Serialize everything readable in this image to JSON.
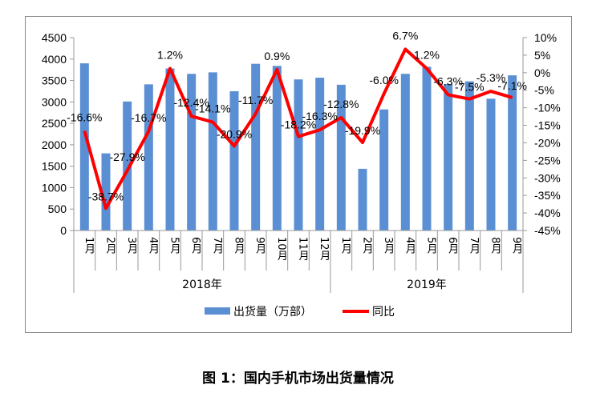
{
  "chart_data": {
    "type": "bar+line",
    "categories": [
      "1月",
      "2月",
      "3月",
      "4月",
      "5月",
      "6月",
      "7月",
      "8月",
      "9月",
      "10月",
      "11月",
      "12月",
      "1月",
      "2月",
      "3月",
      "4月",
      "5月",
      "6月",
      "7月",
      "8月",
      "9月"
    ],
    "groups": [
      {
        "label": "2018年",
        "count": 12
      },
      {
        "label": "2019年",
        "count": 9
      }
    ],
    "series": [
      {
        "name": "出货量（万部）",
        "type": "bar",
        "axis": "left",
        "color": "#5B8FD3",
        "values": [
          3900,
          1800,
          3010,
          3410,
          3780,
          3655,
          3690,
          3250,
          3890,
          3840,
          3525,
          3565,
          3400,
          1440,
          2825,
          3655,
          3820,
          3415,
          3480,
          3075,
          3620
        ]
      },
      {
        "name": "同比",
        "type": "line",
        "axis": "right",
        "color": "#FF0000",
        "values": [
          -16.6,
          -38.7,
          -27.9,
          -16.7,
          1.2,
          -12.4,
          -14.1,
          -20.9,
          -11.7,
          0.9,
          -18.2,
          -16.3,
          -12.8,
          -19.9,
          -6.0,
          6.7,
          1.2,
          -6.3,
          -7.5,
          -5.3,
          -7.1
        ],
        "labels": [
          "-16.6%",
          "-38.7%",
          "-27.9%",
          "-16.7%",
          "1.2%",
          "-12.4%",
          "-14.1%",
          "-20.9%",
          "-11.7%",
          "0.9%",
          "-18.2%",
          "-16.3%",
          "-12.8%",
          "-19.9%",
          "-6.0%",
          "6.7%",
          "1.2%",
          "-6.3%",
          "-7.5%",
          "-5.3%",
          "-7.1%"
        ]
      }
    ],
    "left_axis": {
      "range": [
        0,
        4500
      ],
      "ticks": [
        "0",
        "500",
        "1000",
        "1500",
        "2000",
        "2500",
        "3000",
        "3500",
        "4000",
        "4500"
      ]
    },
    "right_axis": {
      "range": [
        -45,
        10
      ],
      "ticks": [
        "-45%",
        "-40%",
        "-35%",
        "-30%",
        "-25%",
        "-20%",
        "-15%",
        "-10%",
        "-5%",
        "0%",
        "5%",
        "10%"
      ]
    },
    "grid": false,
    "legend": "bottom",
    "title": "图 1：国内手机市场出货量情况"
  }
}
